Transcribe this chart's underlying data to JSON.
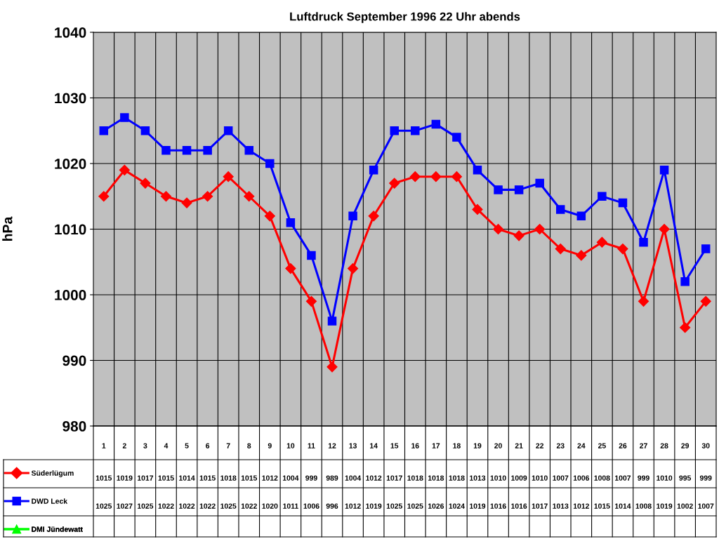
{
  "chart_data": {
    "type": "line",
    "title": "Luftdruck September 1996 22 Uhr abends",
    "ylabel": "hPa",
    "categories": [
      "1",
      "2",
      "3",
      "4",
      "5",
      "6",
      "7",
      "8",
      "9",
      "10",
      "11",
      "12",
      "13",
      "14",
      "15",
      "16",
      "17",
      "18",
      "19",
      "20",
      "21",
      "22",
      "23",
      "24",
      "25",
      "26",
      "27",
      "28",
      "29",
      "30"
    ],
    "series": [
      {
        "name": "Süderlügum",
        "color": "#ff0000",
        "marker": "diamond",
        "values": [
          1015,
          1019,
          1017,
          1015,
          1014,
          1015,
          1018,
          1015,
          1012,
          1004,
          999,
          989,
          1004,
          1012,
          1017,
          1018,
          1018,
          1018,
          1013,
          1010,
          1009,
          1010,
          1007,
          1006,
          1008,
          1007,
          999,
          1010,
          995,
          999
        ]
      },
      {
        "name": "DWD Leck",
        "color": "#0000ff",
        "marker": "square",
        "values": [
          1025,
          1027,
          1025,
          1022,
          1022,
          1022,
          1025,
          1022,
          1020,
          1011,
          1006,
          996,
          1012,
          1019,
          1025,
          1025,
          1026,
          1024,
          1019,
          1016,
          1016,
          1017,
          1013,
          1012,
          1015,
          1014,
          1008,
          1019,
          1002,
          1007
        ]
      },
      {
        "name": "DMI Jündewatt",
        "color": "#00ff00",
        "marker": "triangle",
        "values": [
          null,
          null,
          null,
          null,
          null,
          null,
          null,
          null,
          null,
          null,
          null,
          null,
          null,
          null,
          null,
          null,
          null,
          null,
          null,
          null,
          null,
          null,
          null,
          null,
          null,
          null,
          null,
          null,
          null,
          null
        ]
      }
    ],
    "ylim": [
      980,
      1040
    ],
    "yticks": [
      980,
      990,
      1000,
      1010,
      1020,
      1030,
      1040
    ],
    "grid": true,
    "legend": "left",
    "data_labels": true,
    "line_style": "solid"
  }
}
